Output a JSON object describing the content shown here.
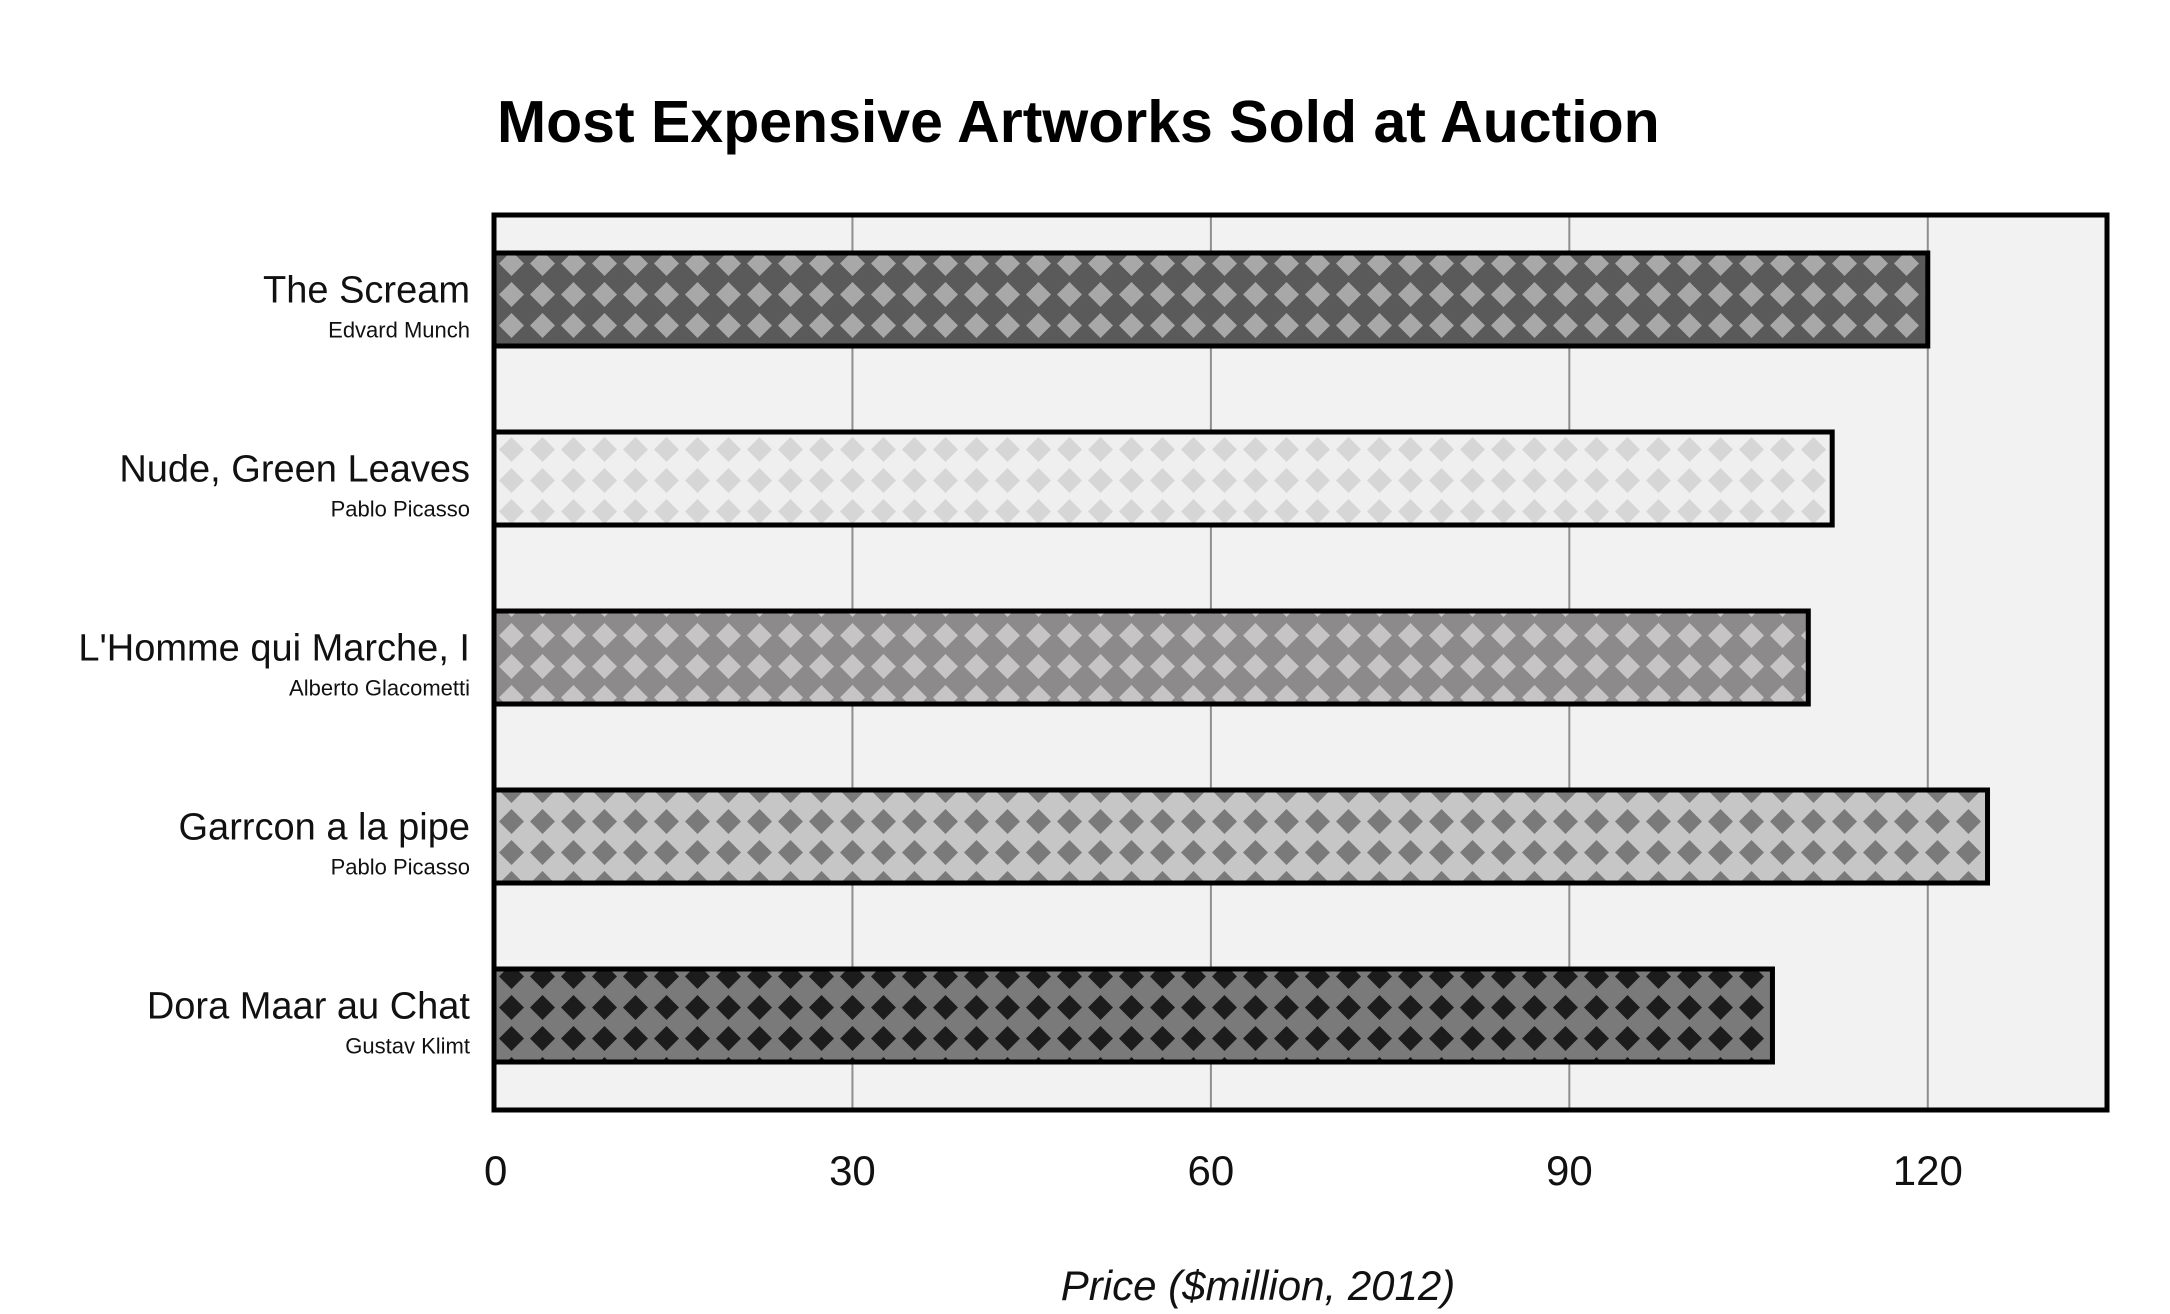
{
  "chart_data": {
    "type": "bar",
    "orientation": "horizontal",
    "title": "Most Expensive Artworks Sold at Auction",
    "xlabel": "Price ($million, 2012)",
    "ylabel": "",
    "xlim": [
      0,
      135
    ],
    "xticks": [
      0,
      30,
      60,
      90,
      120
    ],
    "grid": true,
    "categories": [
      "The Scream",
      "Nude, Green Leaves",
      "L'Homme qui Marche, I",
      "Garrcon a la pipe",
      "Dora Maar au Chat"
    ],
    "artists": [
      "Edvard Munch",
      "Pablo Picasso",
      "Alberto Glacometti",
      "Pablo Picasso",
      "Gustav Klimt"
    ],
    "values": [
      120,
      112,
      110,
      125,
      107
    ],
    "bar_colors": [
      {
        "base": "#5a5a5a",
        "diamond": "#a8a8a8"
      },
      {
        "base": "#efefef",
        "diamond": "#d6d6d6"
      },
      {
        "base": "#8c8a8a",
        "diamond": "#c6c4c4"
      },
      {
        "base": "#c6c6c6",
        "diamond": "#7a7a7a"
      },
      {
        "base": "#7a7a7a",
        "diamond": "#1c1c1c"
      }
    ],
    "plot_background": "#f2f2f2",
    "pattern": "diamond"
  }
}
